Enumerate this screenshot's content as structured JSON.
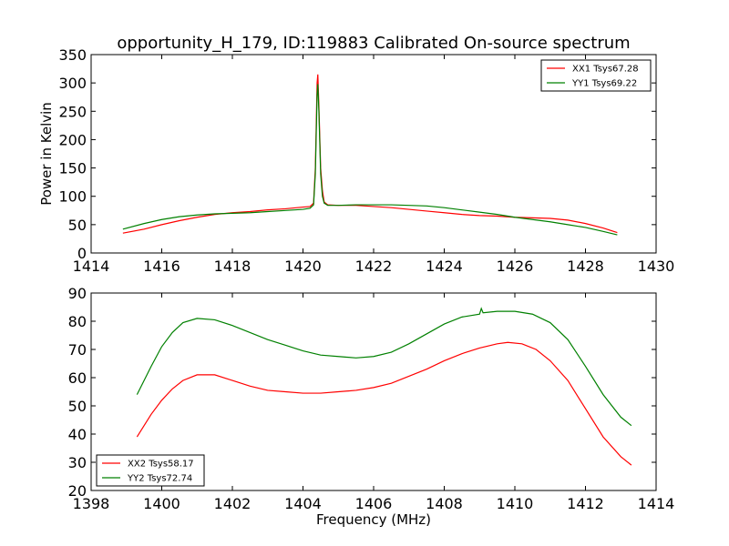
{
  "figure": {
    "title": "opportunity_H_179, ID:119883 Calibrated On-source spectrum"
  },
  "chart_data": [
    {
      "type": "line",
      "title": "opportunity_H_179, ID:119883 Calibrated On-source spectrum",
      "xlabel": "",
      "ylabel": "Power in Kelvin",
      "xlim": [
        1414,
        1430
      ],
      "ylim": [
        0,
        350
      ],
      "xticks": [
        1414,
        1416,
        1418,
        1420,
        1422,
        1424,
        1426,
        1428,
        1430
      ],
      "yticks": [
        0,
        50,
        100,
        150,
        200,
        250,
        300,
        350
      ],
      "grid": false,
      "legend": "top-right",
      "series": [
        {
          "name": "XX1 Tsys67.28",
          "color": "#ff0000",
          "x": [
            1414.9,
            1415.5,
            1416.0,
            1416.5,
            1417.0,
            1417.5,
            1418.0,
            1418.5,
            1419.0,
            1419.5,
            1420.0,
            1420.2,
            1420.3,
            1420.35,
            1420.4,
            1420.42,
            1420.45,
            1420.5,
            1420.55,
            1420.6,
            1420.7,
            1421.0,
            1421.5,
            1422.0,
            1422.5,
            1423.0,
            1423.5,
            1424.0,
            1424.5,
            1425.0,
            1425.5,
            1426.0,
            1426.5,
            1427.0,
            1427.5,
            1428.0,
            1428.5,
            1428.9
          ],
          "y": [
            35,
            42,
            50,
            57,
            63,
            68,
            71,
            73,
            76,
            78,
            81,
            82,
            88,
            150,
            300,
            315,
            260,
            150,
            110,
            90,
            85,
            84,
            84,
            82,
            80,
            77,
            74,
            71,
            68,
            66,
            65,
            63,
            62,
            61,
            58,
            52,
            44,
            36
          ]
        },
        {
          "name": "YY1 Tsys69.22",
          "color": "#008000",
          "x": [
            1414.9,
            1415.5,
            1416.0,
            1416.5,
            1417.0,
            1417.5,
            1418.0,
            1418.5,
            1419.0,
            1419.5,
            1420.0,
            1420.2,
            1420.3,
            1420.35,
            1420.4,
            1420.42,
            1420.45,
            1420.5,
            1420.55,
            1420.6,
            1420.7,
            1421.0,
            1421.5,
            1422.0,
            1422.5,
            1423.0,
            1423.5,
            1424.0,
            1424.5,
            1425.0,
            1425.5,
            1426.0,
            1426.5,
            1427.0,
            1427.5,
            1428.0,
            1428.5,
            1428.9
          ],
          "y": [
            42,
            52,
            59,
            64,
            67,
            69,
            70,
            71,
            73,
            75,
            77,
            79,
            85,
            140,
            280,
            298,
            250,
            140,
            100,
            88,
            84,
            84,
            85,
            85,
            85,
            84,
            83,
            80,
            76,
            72,
            68,
            63,
            59,
            55,
            50,
            45,
            38,
            32
          ]
        }
      ]
    },
    {
      "type": "line",
      "title": "",
      "xlabel": "Frequency (MHz)",
      "ylabel": "",
      "xlim": [
        1398,
        1414
      ],
      "ylim": [
        20,
        90
      ],
      "xticks": [
        1398,
        1400,
        1402,
        1404,
        1406,
        1408,
        1410,
        1412,
        1414
      ],
      "yticks": [
        20,
        30,
        40,
        50,
        60,
        70,
        80,
        90
      ],
      "grid": false,
      "legend": "bottom-left",
      "series": [
        {
          "name": "XX2 Tsys58.17",
          "color": "#ff0000",
          "x": [
            1399.3,
            1399.7,
            1400.0,
            1400.3,
            1400.6,
            1401.0,
            1401.5,
            1402.0,
            1402.5,
            1403.0,
            1403.5,
            1404.0,
            1404.5,
            1405.0,
            1405.5,
            1406.0,
            1406.5,
            1407.0,
            1407.5,
            1408.0,
            1408.5,
            1409.0,
            1409.5,
            1409.8,
            1410.2,
            1410.6,
            1411.0,
            1411.5,
            1412.0,
            1412.5,
            1413.0,
            1413.3
          ],
          "y": [
            39,
            47,
            52,
            56,
            59,
            61,
            61,
            59,
            57,
            55.5,
            55,
            54.5,
            54.5,
            55,
            55.5,
            56.5,
            58,
            60.5,
            63,
            66,
            68.5,
            70.5,
            72,
            72.5,
            72,
            70,
            66,
            59,
            49,
            39,
            32,
            29
          ]
        },
        {
          "name": "YY2 Tsys72.74",
          "color": "#008000",
          "x": [
            1399.3,
            1399.7,
            1400.0,
            1400.3,
            1400.6,
            1401.0,
            1401.5,
            1402.0,
            1402.5,
            1403.0,
            1403.5,
            1404.0,
            1404.5,
            1405.0,
            1405.5,
            1406.0,
            1406.5,
            1407.0,
            1407.5,
            1408.0,
            1408.5,
            1409.0,
            1409.05,
            1409.1,
            1409.5,
            1410.0,
            1410.5,
            1411.0,
            1411.5,
            1412.0,
            1412.5,
            1413.0,
            1413.3
          ],
          "y": [
            54,
            64,
            71,
            76,
            79.5,
            81,
            80.5,
            78.5,
            76,
            73.5,
            71.5,
            69.5,
            68,
            67.5,
            67,
            67.5,
            69,
            72,
            75.5,
            79,
            81.5,
            82.5,
            84.5,
            83,
            83.5,
            83.5,
            82.5,
            79.5,
            73.5,
            64,
            54,
            46,
            43
          ]
        }
      ]
    }
  ]
}
